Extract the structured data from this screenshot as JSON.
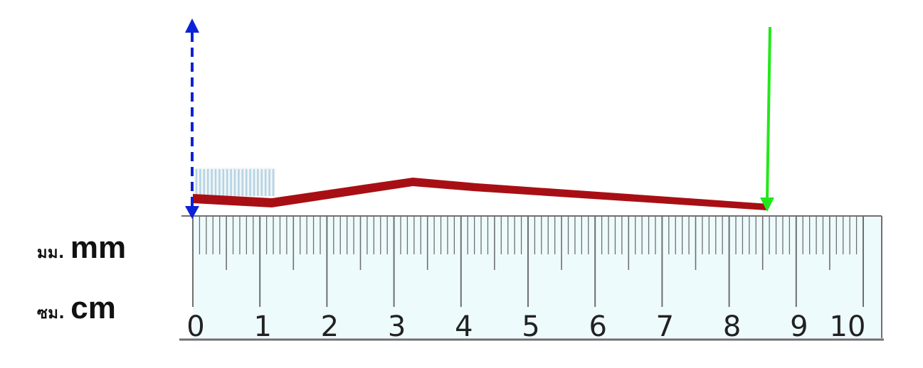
{
  "units": {
    "mm": {
      "thai": "มม.",
      "en": "mm"
    },
    "cm": {
      "thai": "ซม.",
      "en": "cm"
    }
  },
  "ruler": {
    "min_cm": 0,
    "max_cm": 10,
    "labels": [
      "0",
      "1",
      "2",
      "3",
      "4",
      "5",
      "6",
      "7",
      "8",
      "9",
      "10"
    ]
  },
  "measurement": {
    "object": "toothbrush",
    "start_cm": 0,
    "end_cm": 8.6
  },
  "colors": {
    "ruler_fill": "#eefbfd",
    "ruler_line": "#6f6f6f",
    "toothbrush": "#a80f14",
    "bristles": "#b5d4e4",
    "start_arrow": "#0b22d8",
    "end_arrow": "#22e81a"
  }
}
